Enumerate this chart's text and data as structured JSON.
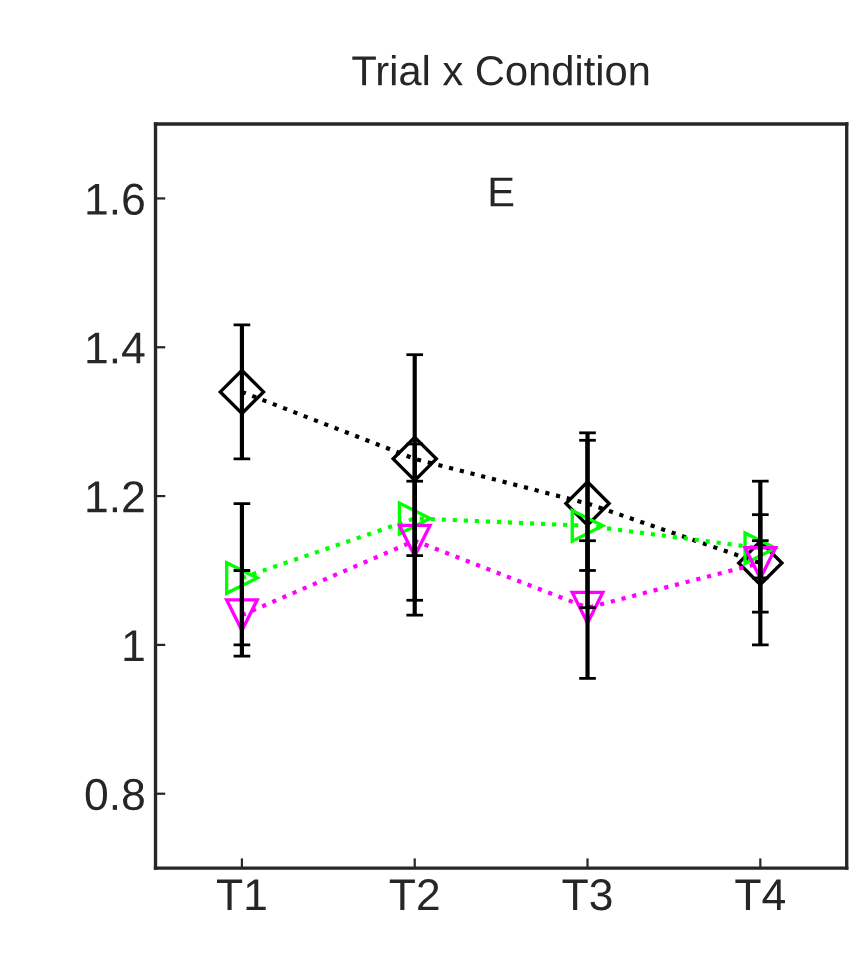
{
  "chart_data": {
    "type": "line",
    "title": "Trial x Condition",
    "annotations": [
      "E"
    ],
    "categories": [
      "T1",
      "T2",
      "T3",
      "T4"
    ],
    "series": [
      {
        "color": "#000000",
        "marker": "diamond",
        "values": [
          1.34,
          1.25,
          1.19,
          1.11
        ],
        "errors": [
          [
            1.25,
            1.43
          ],
          [
            1.12,
            1.39
          ],
          [
            1.1,
            1.285
          ],
          [
            1.0,
            1.22
          ]
        ]
      },
      {
        "color": "#00ff00",
        "marker": "triangle_right",
        "values": [
          1.09,
          1.17,
          1.16,
          1.13
        ],
        "errors": [
          [
            1.0,
            1.19
          ],
          [
            1.04,
            1.27
          ],
          [
            1.05,
            1.275
          ],
          [
            1.09,
            1.175
          ]
        ]
      },
      {
        "color": "#ff00ff",
        "marker": "triangle_down",
        "values": [
          1.04,
          1.14,
          1.05,
          1.11
        ],
        "errors": [
          [
            0.985,
            1.1
          ],
          [
            1.06,
            1.22
          ],
          [
            0.955,
            1.14
          ],
          [
            1.044,
            1.14
          ]
        ]
      }
    ],
    "ylim": [
      0.7,
      1.7
    ],
    "yticks": [
      0.8,
      1,
      1.2,
      1.4,
      1.6
    ],
    "grid": false,
    "legend": false,
    "line_style": "dotted"
  }
}
